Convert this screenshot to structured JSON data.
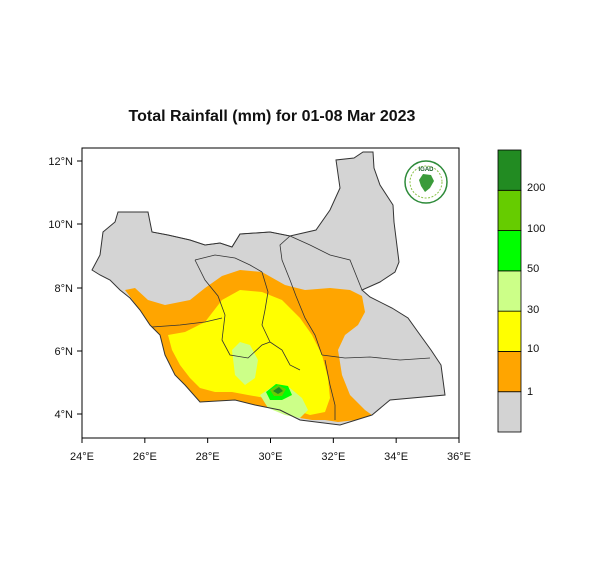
{
  "chart_data": {
    "type": "map",
    "title": "Total Rainfall (mm) for 01-08 Mar 2023",
    "x_ticks": [
      "24°E",
      "26°E",
      "28°E",
      "30°E",
      "32°E",
      "34°E",
      "36°E"
    ],
    "y_ticks": [
      "12°N",
      "10°N",
      "8°N",
      "6°N",
      "4°N"
    ],
    "xlim": [
      24,
      36
    ],
    "ylim": [
      3.2,
      12.3
    ],
    "legend": {
      "unit": "mm",
      "bins": [
        {
          "color": "#d3d3d3",
          "label": ""
        },
        {
          "color": "#ffa500",
          "label": "1"
        },
        {
          "color": "#ffff00",
          "label": "10"
        },
        {
          "color": "#ccff88",
          "label": "30"
        },
        {
          "color": "#00ff00",
          "label": "50"
        },
        {
          "color": "#66cc00",
          "label": "100"
        },
        {
          "color": "#228b22",
          "label": "200"
        }
      ]
    },
    "logo_text": "IGAD"
  }
}
